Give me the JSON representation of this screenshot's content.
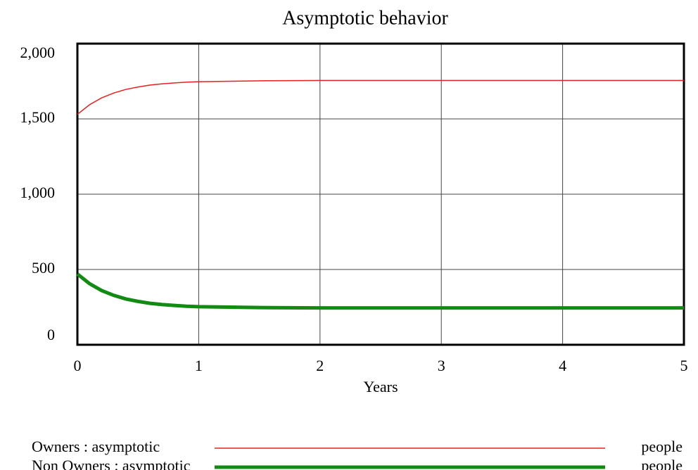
{
  "chart_data": {
    "type": "line",
    "title": "Asymptotic behavior",
    "xlabel": "Years",
    "x": [
      0,
      0.1,
      0.2,
      0.3,
      0.4,
      0.5,
      0.6,
      0.7,
      0.8,
      0.9,
      1,
      1.5,
      2,
      3,
      4,
      5
    ],
    "series": [
      {
        "name": "Owners : asymptotic",
        "unit": "people",
        "color": "#e8201e",
        "width": 1.5,
        "values": [
          1530,
          1594,
          1640,
          1672,
          1696,
          1712,
          1725,
          1733,
          1739,
          1744,
          1747,
          1753,
          1755,
          1755,
          1755,
          1755
        ]
      },
      {
        "name": "Non Owners : asymptotic",
        "unit": "people",
        "color": "#118b11",
        "width": 5,
        "values": [
          470,
          406,
          360,
          328,
          304,
          288,
          275,
          267,
          261,
          256,
          253,
          247,
          245,
          245,
          245,
          245
        ]
      }
    ],
    "xlim": [
      0,
      5
    ],
    "xticks": [
      0,
      1,
      2,
      3,
      4,
      5
    ],
    "ylim": [
      0,
      2000
    ],
    "yticks": [
      0,
      500,
      {
        "value": 1000,
        "label": "1,000"
      },
      {
        "value": 1500,
        "label": "1,500"
      },
      {
        "value": 2000,
        "label": "2,000"
      }
    ],
    "grid": true
  }
}
